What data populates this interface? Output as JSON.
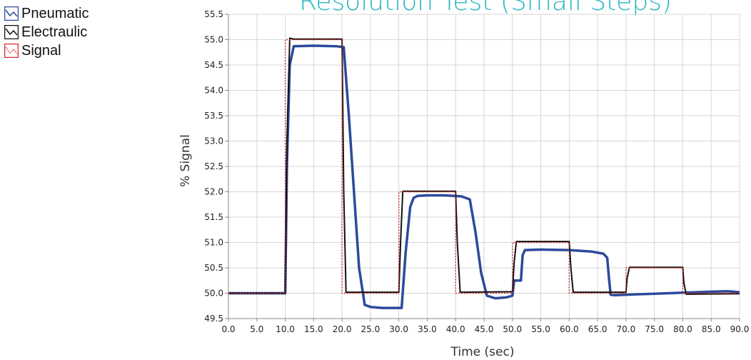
{
  "chart_data": {
    "type": "line",
    "title": "Resolution Test (Small Steps)",
    "xlabel": "Time (sec)",
    "ylabel": "% Signal",
    "xlim": [
      0,
      90
    ],
    "ylim": [
      49.5,
      55.5
    ],
    "x_ticks": [
      "0.0",
      "5.0",
      "10.0",
      "15.0",
      "20.0",
      "25.0",
      "30.0",
      "35.0",
      "40.0",
      "45.0",
      "50.0",
      "55.0",
      "60.0",
      "65.0",
      "70.0",
      "75.0",
      "80.0",
      "85.0",
      "90.0"
    ],
    "y_ticks": [
      "49.5",
      "50.0",
      "50.5",
      "51.0",
      "51.5",
      "52.0",
      "52.5",
      "53.0",
      "53.5",
      "54.0",
      "54.5",
      "55.0",
      "55.5"
    ],
    "grid": true,
    "legend_position": "top-left",
    "title_color": "#29b6c4",
    "series": [
      {
        "name": "Pneumatic",
        "color": "#2b4a9c",
        "style": "solid-thick",
        "x": [
          0,
          10.0,
          10.3,
          10.8,
          11.5,
          15,
          19,
          20.3,
          21.2,
          23.0,
          24.0,
          25.0,
          27,
          29,
          30.5,
          31.2,
          32.0,
          32.6,
          33.3,
          35,
          38,
          41,
          42.5,
          43.5,
          44.5,
          45.5,
          47,
          49,
          50.0,
          50.3,
          51.5,
          51.8,
          52.2,
          55,
          60,
          64,
          66,
          66.7,
          67.0,
          67.3,
          68,
          70,
          75,
          80,
          85,
          88,
          90
        ],
        "y": [
          50.0,
          50.0,
          52.5,
          54.5,
          54.87,
          54.88,
          54.87,
          54.85,
          53.5,
          50.5,
          49.77,
          49.73,
          49.71,
          49.71,
          49.71,
          50.8,
          51.7,
          51.88,
          51.92,
          51.93,
          51.93,
          51.91,
          51.85,
          51.2,
          50.4,
          49.95,
          49.9,
          49.92,
          49.95,
          50.25,
          50.25,
          50.75,
          50.85,
          50.86,
          50.85,
          50.82,
          50.78,
          50.7,
          50.3,
          49.97,
          49.96,
          49.97,
          49.99,
          50.01,
          50.03,
          50.04,
          50.02
        ]
      },
      {
        "name": "Electraulic",
        "color": "#111111",
        "style": "solid",
        "x": [
          0,
          10.0,
          10.3,
          10.8,
          11.5,
          20.0,
          20.3,
          20.7,
          30.0,
          30.3,
          30.7,
          40.0,
          40.3,
          40.8,
          50.0,
          50.3,
          50.7,
          60.0,
          60.3,
          60.7,
          70.0,
          70.2,
          70.6,
          80.0,
          80.2,
          80.6,
          90
        ],
        "y": [
          50.0,
          50.0,
          53.0,
          55.03,
          55.01,
          55.01,
          52.0,
          50.02,
          50.02,
          51.0,
          52.01,
          52.01,
          51.0,
          50.02,
          50.03,
          50.6,
          51.02,
          51.02,
          50.5,
          50.02,
          50.02,
          50.3,
          50.51,
          50.51,
          50.2,
          49.98,
          49.99
        ]
      },
      {
        "name": "Signal",
        "color": "#d03030",
        "style": "dotted",
        "x": [
          0,
          10.0,
          10.0,
          20.0,
          20.0,
          30.0,
          30.0,
          40.0,
          40.0,
          50.0,
          50.0,
          60.0,
          60.0,
          70.0,
          70.0,
          80.0,
          80.0,
          90
        ],
        "y": [
          50.0,
          50.0,
          55.0,
          55.0,
          50.0,
          50.0,
          52.0,
          52.0,
          50.0,
          50.0,
          51.0,
          51.0,
          50.0,
          50.0,
          50.5,
          50.5,
          50.0,
          50.0
        ]
      }
    ]
  }
}
